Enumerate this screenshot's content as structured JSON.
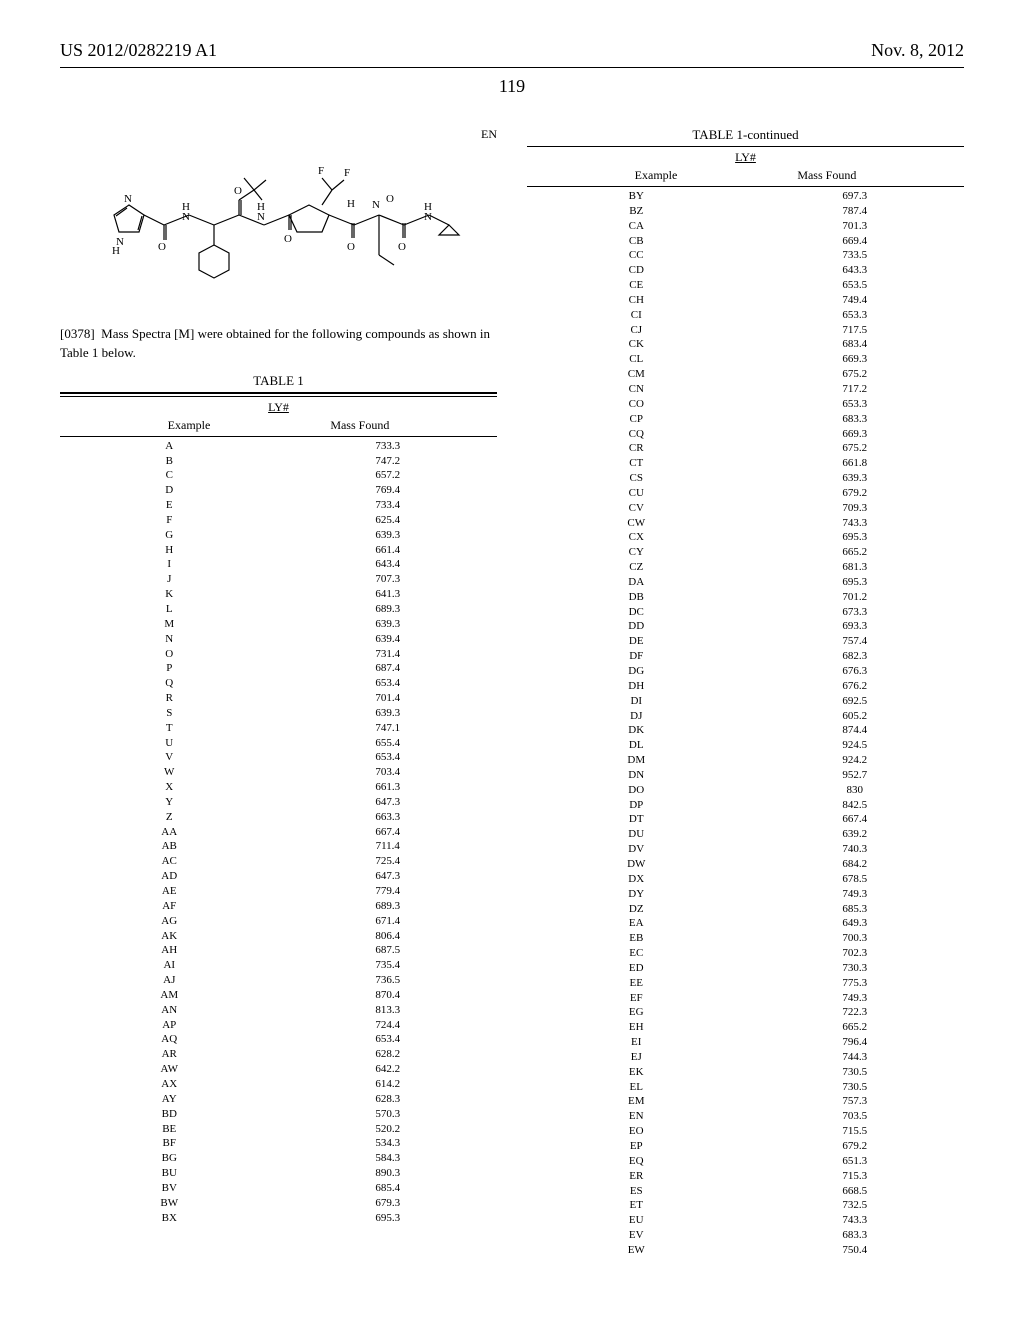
{
  "header": {
    "patent_id": "US 2012/0282219 A1",
    "date": "Nov. 8, 2012"
  },
  "page_number": "119",
  "structure_label": "EN",
  "paragraph": {
    "num": "[0378]",
    "text": "Mass Spectra [M] were obtained for the following compounds as shown in Table 1 below."
  },
  "table1": {
    "title": "TABLE 1",
    "subtitle": "LY#",
    "col_headers": [
      "Example",
      "Mass Found"
    ],
    "rows_left": [
      [
        "A",
        "733.3"
      ],
      [
        "B",
        "747.2"
      ],
      [
        "C",
        "657.2"
      ],
      [
        "D",
        "769.4"
      ],
      [
        "E",
        "733.4"
      ],
      [
        "F",
        "625.4"
      ],
      [
        "G",
        "639.3"
      ],
      [
        "H",
        "661.4"
      ],
      [
        "I",
        "643.4"
      ],
      [
        "J",
        "707.3"
      ],
      [
        "K",
        "641.3"
      ],
      [
        "L",
        "689.3"
      ],
      [
        "M",
        "639.3"
      ],
      [
        "N",
        "639.4"
      ],
      [
        "O",
        "731.4"
      ],
      [
        "P",
        "687.4"
      ],
      [
        "Q",
        "653.4"
      ],
      [
        "R",
        "701.4"
      ],
      [
        "S",
        "639.3"
      ],
      [
        "T",
        "747.1"
      ],
      [
        "U",
        "655.4"
      ],
      [
        "V",
        "653.4"
      ],
      [
        "W",
        "703.4"
      ],
      [
        "X",
        "661.3"
      ],
      [
        "Y",
        "647.3"
      ],
      [
        "Z",
        "663.3"
      ],
      [
        "AA",
        "667.4"
      ],
      [
        "AB",
        "711.4"
      ],
      [
        "AC",
        "725.4"
      ],
      [
        "AD",
        "647.3"
      ],
      [
        "AE",
        "779.4"
      ],
      [
        "AF",
        "689.3"
      ],
      [
        "AG",
        "671.4"
      ],
      [
        "AK",
        "806.4"
      ],
      [
        "AH",
        "687.5"
      ],
      [
        "AI",
        "735.4"
      ],
      [
        "AJ",
        "736.5"
      ],
      [
        "AM",
        "870.4"
      ],
      [
        "AN",
        "813.3"
      ],
      [
        "AP",
        "724.4"
      ],
      [
        "AQ",
        "653.4"
      ],
      [
        "AR",
        "628.2"
      ],
      [
        "AW",
        "642.2"
      ],
      [
        "AX",
        "614.2"
      ],
      [
        "AY",
        "628.3"
      ],
      [
        "BD",
        "570.3"
      ],
      [
        "BE",
        "520.2"
      ],
      [
        "BF",
        "534.3"
      ],
      [
        "BG",
        "584.3"
      ],
      [
        "BU",
        "890.3"
      ],
      [
        "BV",
        "685.4"
      ],
      [
        "BW",
        "679.3"
      ],
      [
        "BX",
        "695.3"
      ]
    ]
  },
  "table1_cont": {
    "title": "TABLE 1-continued",
    "subtitle": "LY#",
    "col_headers": [
      "Example",
      "Mass Found"
    ],
    "rows_right": [
      [
        "BY",
        "697.3"
      ],
      [
        "BZ",
        "787.4"
      ],
      [
        "CA",
        "701.3"
      ],
      [
        "CB",
        "669.4"
      ],
      [
        "CC",
        "733.5"
      ],
      [
        "CD",
        "643.3"
      ],
      [
        "CE",
        "653.5"
      ],
      [
        "CH",
        "749.4"
      ],
      [
        "CI",
        "653.3"
      ],
      [
        "CJ",
        "717.5"
      ],
      [
        "CK",
        "683.4"
      ],
      [
        "CL",
        "669.3"
      ],
      [
        "CM",
        "675.2"
      ],
      [
        "CN",
        "717.2"
      ],
      [
        "CO",
        "653.3"
      ],
      [
        "CP",
        "683.3"
      ],
      [
        "CQ",
        "669.3"
      ],
      [
        "CR",
        "675.2"
      ],
      [
        "CT",
        "661.8"
      ],
      [
        "CS",
        "639.3"
      ],
      [
        "CU",
        "679.2"
      ],
      [
        "CV",
        "709.3"
      ],
      [
        "CW",
        "743.3"
      ],
      [
        "CX",
        "695.3"
      ],
      [
        "CY",
        "665.2"
      ],
      [
        "CZ",
        "681.3"
      ],
      [
        "DA",
        "695.3"
      ],
      [
        "DB",
        "701.2"
      ],
      [
        "DC",
        "673.3"
      ],
      [
        "DD",
        "693.3"
      ],
      [
        "DE",
        "757.4"
      ],
      [
        "DF",
        "682.3"
      ],
      [
        "DG",
        "676.3"
      ],
      [
        "DH",
        "676.2"
      ],
      [
        "DI",
        "692.5"
      ],
      [
        "DJ",
        "605.2"
      ],
      [
        "DK",
        "874.4"
      ],
      [
        "DL",
        "924.5"
      ],
      [
        "DM",
        "924.2"
      ],
      [
        "DN",
        "952.7"
      ],
      [
        "DO",
        "830"
      ],
      [
        "DP",
        "842.5"
      ],
      [
        "DT",
        "667.4"
      ],
      [
        "DU",
        "639.2"
      ],
      [
        "DV",
        "740.3"
      ],
      [
        "DW",
        "684.2"
      ],
      [
        "DX",
        "678.5"
      ],
      [
        "DY",
        "749.3"
      ],
      [
        "DZ",
        "685.3"
      ],
      [
        "EA",
        "649.3"
      ],
      [
        "EB",
        "700.3"
      ],
      [
        "EC",
        "702.3"
      ],
      [
        "ED",
        "730.3"
      ],
      [
        "EE",
        "775.3"
      ],
      [
        "EF",
        "749.3"
      ],
      [
        "EG",
        "722.3"
      ],
      [
        "EH",
        "665.2"
      ],
      [
        "EI",
        "796.4"
      ],
      [
        "EJ",
        "744.3"
      ],
      [
        "EK",
        "730.5"
      ],
      [
        "EL",
        "730.5"
      ],
      [
        "EM",
        "757.3"
      ],
      [
        "EN",
        "703.5"
      ],
      [
        "EO",
        "715.5"
      ],
      [
        "EP",
        "679.2"
      ],
      [
        "EQ",
        "651.3"
      ],
      [
        "ER",
        "715.3"
      ],
      [
        "ES",
        "668.5"
      ],
      [
        "ET",
        "732.5"
      ],
      [
        "EU",
        "743.3"
      ],
      [
        "EV",
        "683.3"
      ],
      [
        "EW",
        "750.4"
      ]
    ]
  }
}
